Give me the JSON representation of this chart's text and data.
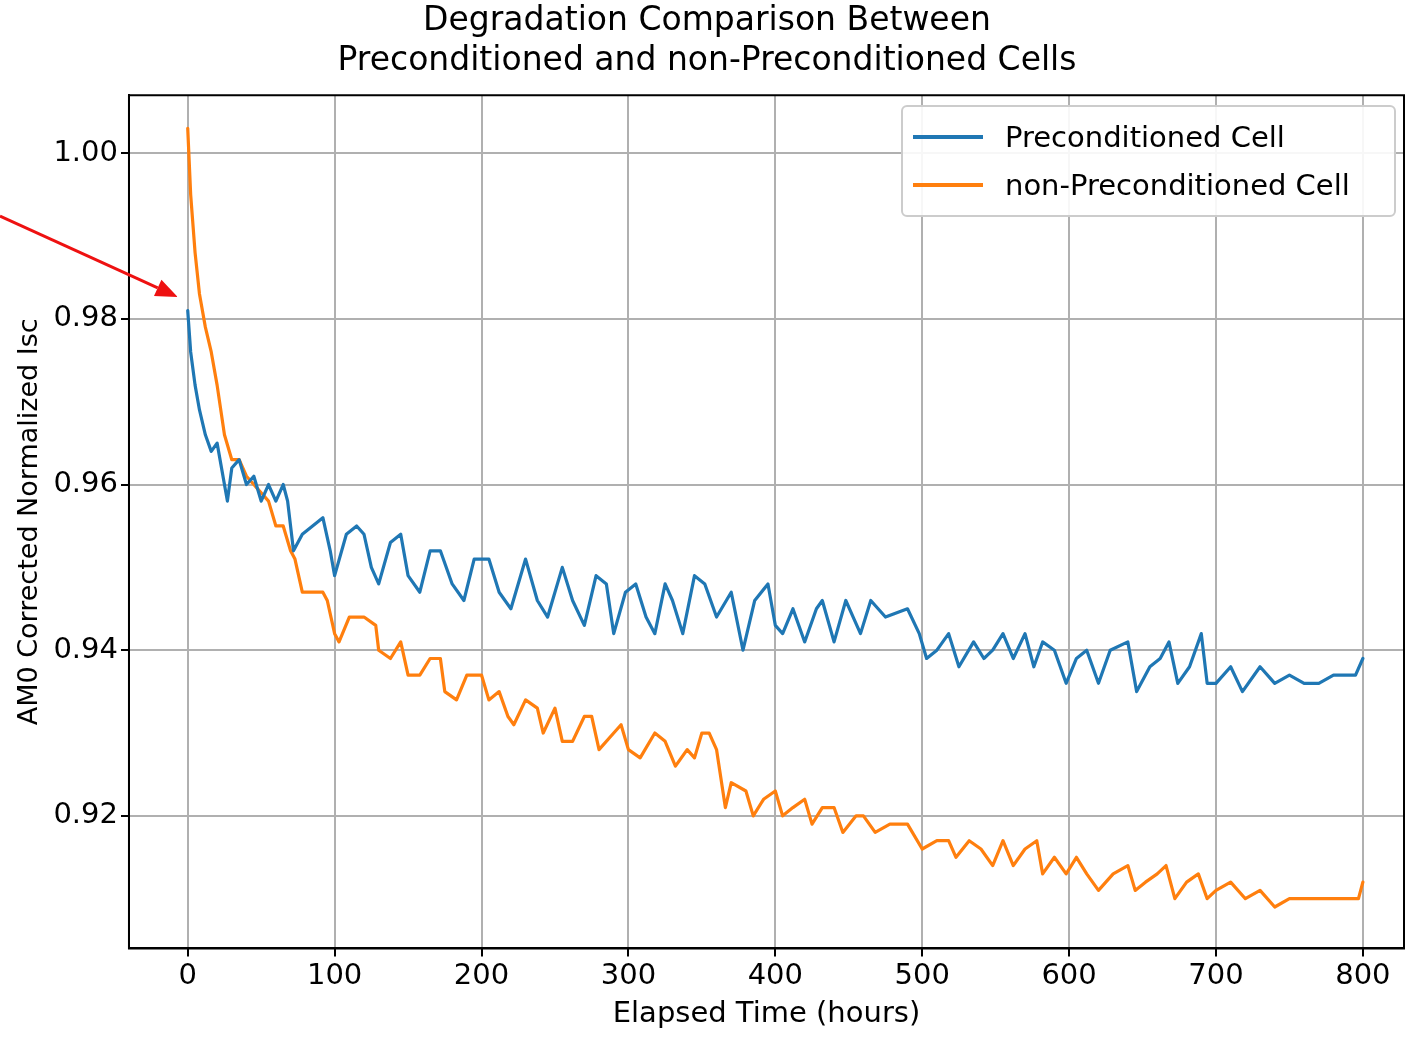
{
  "chart_data": {
    "type": "line",
    "title": "Degradation Comparison Between\nPreconditioned and non-Preconditioned Cells",
    "xlabel": "Elapsed Time (hours)",
    "ylabel": "AM0 Corrected Normalized Isc",
    "xlim": [
      -40,
      828
    ],
    "ylim": [
      0.904,
      1.007
    ],
    "xticks": [
      0,
      100,
      200,
      300,
      400,
      500,
      600,
      700,
      800
    ],
    "yticks": [
      {
        "value": 0.92,
        "label": "0.92"
      },
      {
        "value": 0.94,
        "label": "0.94"
      },
      {
        "value": 0.96,
        "label": "0.96"
      },
      {
        "value": 0.98,
        "label": "0.98"
      },
      {
        "value": 1,
        "label": "1.00"
      }
    ],
    "grid": true,
    "legend": "top right",
    "marker": "none",
    "line_style": "solid",
    "series": [
      {
        "name": "Preconditioned Cell",
        "color": "#1f77b4",
        "x": [
          0,
          2,
          5,
          8,
          12,
          16,
          20,
          25,
          27,
          30,
          35,
          40,
          45,
          50,
          55,
          60,
          65,
          68,
          72,
          78,
          85,
          92,
          97,
          100,
          108,
          115,
          120,
          125,
          130,
          138,
          145,
          150,
          158,
          165,
          172,
          180,
          188,
          195,
          205,
          212,
          220,
          230,
          238,
          245,
          255,
          262,
          270,
          278,
          285,
          290,
          298,
          305,
          312,
          318,
          325,
          330,
          337,
          345,
          352,
          360,
          370,
          378,
          386,
          395,
          400,
          405,
          412,
          420,
          428,
          432,
          440,
          448,
          453,
          458,
          465,
          475,
          490,
          498,
          503,
          510,
          518,
          525,
          535,
          542,
          548,
          555,
          562,
          570,
          576,
          582,
          590,
          598,
          605,
          612,
          620,
          628,
          640,
          646,
          655,
          662,
          668,
          674,
          682,
          690,
          694,
          700,
          710,
          718,
          730,
          740,
          750,
          760,
          770,
          780,
          790,
          795,
          800
        ],
        "values": [
          0.981,
          0.976,
          0.972,
          0.969,
          0.966,
          0.964,
          0.965,
          0.96,
          0.958,
          0.962,
          0.963,
          0.96,
          0.961,
          0.958,
          0.96,
          0.958,
          0.96,
          0.958,
          0.952,
          0.954,
          0.955,
          0.956,
          0.952,
          0.949,
          0.954,
          0.955,
          0.954,
          0.95,
          0.948,
          0.953,
          0.954,
          0.949,
          0.947,
          0.952,
          0.952,
          0.948,
          0.946,
          0.951,
          0.951,
          0.947,
          0.945,
          0.951,
          0.946,
          0.944,
          0.95,
          0.946,
          0.943,
          0.949,
          0.948,
          0.942,
          0.947,
          0.948,
          0.944,
          0.942,
          0.948,
          0.946,
          0.942,
          0.949,
          0.948,
          0.944,
          0.947,
          0.94,
          0.946,
          0.948,
          0.943,
          0.942,
          0.945,
          0.941,
          0.945,
          0.946,
          0.941,
          0.946,
          0.944,
          0.942,
          0.946,
          0.944,
          0.945,
          0.942,
          0.939,
          0.94,
          0.942,
          0.938,
          0.941,
          0.939,
          0.94,
          0.942,
          0.939,
          0.942,
          0.938,
          0.941,
          0.94,
          0.936,
          0.939,
          0.94,
          0.936,
          0.94,
          0.941,
          0.935,
          0.938,
          0.939,
          0.941,
          0.936,
          0.938,
          0.942,
          0.936,
          0.936,
          0.938,
          0.935,
          0.938,
          0.936,
          0.937,
          0.936,
          0.936,
          0.937,
          0.937,
          0.937,
          0.939
        ]
      },
      {
        "name": "non-Preconditioned Cell",
        "color": "#ff7f0e",
        "x": [
          0,
          2,
          5,
          8,
          12,
          16,
          20,
          25,
          30,
          35,
          40,
          45,
          50,
          55,
          60,
          65,
          70,
          73,
          78,
          85,
          92,
          95,
          100,
          103,
          110,
          120,
          128,
          130,
          138,
          145,
          150,
          158,
          165,
          172,
          175,
          183,
          190,
          200,
          205,
          212,
          218,
          222,
          230,
          238,
          242,
          250,
          255,
          262,
          270,
          275,
          280,
          290,
          295,
          300,
          308,
          318,
          325,
          332,
          340,
          345,
          350,
          355,
          360,
          366,
          370,
          380,
          385,
          392,
          400,
          405,
          412,
          420,
          425,
          432,
          440,
          446,
          455,
          460,
          468,
          478,
          490,
          500,
          510,
          518,
          523,
          532,
          540,
          548,
          555,
          562,
          570,
          578,
          582,
          590,
          598,
          605,
          612,
          620,
          630,
          640,
          645,
          652,
          660,
          666,
          672,
          680,
          688,
          694,
          700,
          710,
          720,
          730,
          740,
          750,
          760,
          770,
          780,
          790,
          797,
          800
        ],
        "values": [
          1.003,
          0.995,
          0.988,
          0.983,
          0.979,
          0.976,
          0.972,
          0.966,
          0.963,
          0.963,
          0.961,
          0.96,
          0.959,
          0.958,
          0.955,
          0.955,
          0.952,
          0.951,
          0.947,
          0.947,
          0.947,
          0.946,
          0.942,
          0.941,
          0.944,
          0.944,
          0.943,
          0.94,
          0.939,
          0.941,
          0.937,
          0.937,
          0.939,
          0.939,
          0.935,
          0.934,
          0.937,
          0.937,
          0.934,
          0.935,
          0.932,
          0.931,
          0.934,
          0.933,
          0.93,
          0.933,
          0.929,
          0.929,
          0.932,
          0.932,
          0.928,
          0.93,
          0.931,
          0.928,
          0.927,
          0.93,
          0.929,
          0.926,
          0.928,
          0.927,
          0.93,
          0.93,
          0.928,
          0.921,
          0.924,
          0.923,
          0.92,
          0.922,
          0.923,
          0.92,
          0.921,
          0.922,
          0.919,
          0.921,
          0.921,
          0.918,
          0.92,
          0.92,
          0.918,
          0.919,
          0.919,
          0.916,
          0.917,
          0.917,
          0.915,
          0.917,
          0.916,
          0.914,
          0.917,
          0.914,
          0.916,
          0.917,
          0.913,
          0.915,
          0.913,
          0.915,
          0.913,
          0.911,
          0.913,
          0.914,
          0.911,
          0.912,
          0.913,
          0.914,
          0.91,
          0.912,
          0.913,
          0.91,
          0.911,
          0.912,
          0.91,
          0.911,
          0.909,
          0.91,
          0.91,
          0.91,
          0.91,
          0.91,
          0.91,
          0.912
        ]
      }
    ]
  }
}
